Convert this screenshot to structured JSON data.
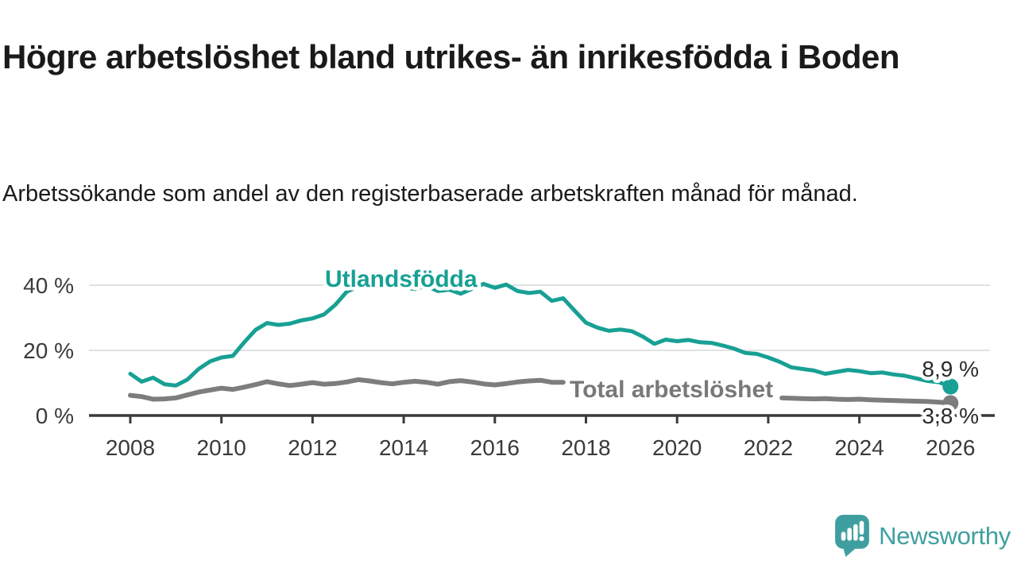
{
  "header": {
    "title": "Högre arbetslöshet bland utrikes- än inrikesfödda i Boden",
    "subtitle": "Arbetssökande som andel av den registerbaserade arbetskraften månad för månad."
  },
  "chart_data": {
    "type": "line",
    "unit": "%",
    "title": "Högre arbetslöshet bland utrikes- än inrikesfödda i Boden",
    "xlabel": "",
    "ylabel": "",
    "xlim": [
      2007.5,
      2026.4
    ],
    "ylim": [
      0,
      44
    ],
    "grid": "horizontal",
    "x_ticks": [
      2008,
      2010,
      2012,
      2014,
      2016,
      2018,
      2020,
      2022,
      2024,
      2026
    ],
    "y_ticks": [
      {
        "value": 0,
        "label": "0 %"
      },
      {
        "value": 20,
        "label": "20 %"
      },
      {
        "value": 40,
        "label": "40 %"
      }
    ],
    "series": [
      {
        "name": "Utlandsfödda",
        "label": "Utlandsfödda",
        "color": "#18a094",
        "end_label": "8,9 %",
        "end_value": 8.9,
        "points": [
          [
            2008.0,
            12.8
          ],
          [
            2008.25,
            10.4
          ],
          [
            2008.5,
            11.6
          ],
          [
            2008.75,
            9.6
          ],
          [
            2009.0,
            9.2
          ],
          [
            2009.25,
            11.0
          ],
          [
            2009.5,
            14.3
          ],
          [
            2009.75,
            16.6
          ],
          [
            2010.0,
            17.8
          ],
          [
            2010.25,
            18.3
          ],
          [
            2010.5,
            22.5
          ],
          [
            2010.75,
            26.3
          ],
          [
            2011.0,
            28.4
          ],
          [
            2011.25,
            27.8
          ],
          [
            2011.5,
            28.2
          ],
          [
            2011.75,
            29.2
          ],
          [
            2012.0,
            29.8
          ],
          [
            2012.25,
            31.0
          ],
          [
            2012.5,
            34.0
          ],
          [
            2012.75,
            38.0
          ],
          [
            2013.0,
            39.6
          ],
          [
            2013.25,
            40.4
          ],
          [
            2013.5,
            39.3
          ],
          [
            2013.75,
            40.3
          ],
          [
            2014.0,
            39.5
          ],
          [
            2014.25,
            38.8
          ],
          [
            2014.5,
            39.8
          ],
          [
            2014.75,
            38.2
          ],
          [
            2015.0,
            38.6
          ],
          [
            2015.25,
            37.4
          ],
          [
            2015.5,
            38.9
          ],
          [
            2015.75,
            40.4
          ],
          [
            2016.0,
            39.2
          ],
          [
            2016.25,
            40.2
          ],
          [
            2016.5,
            38.2
          ],
          [
            2016.75,
            37.6
          ],
          [
            2017.0,
            38.0
          ],
          [
            2017.25,
            35.2
          ],
          [
            2017.5,
            36.0
          ],
          [
            2017.75,
            32.2
          ],
          [
            2018.0,
            28.5
          ],
          [
            2018.25,
            27.0
          ],
          [
            2018.5,
            26.0
          ],
          [
            2018.75,
            26.4
          ],
          [
            2019.0,
            25.9
          ],
          [
            2019.25,
            24.2
          ],
          [
            2019.5,
            22.0
          ],
          [
            2019.75,
            23.3
          ],
          [
            2020.0,
            22.8
          ],
          [
            2020.25,
            23.2
          ],
          [
            2020.5,
            22.5
          ],
          [
            2020.75,
            22.3
          ],
          [
            2021.0,
            21.5
          ],
          [
            2021.25,
            20.5
          ],
          [
            2021.5,
            19.2
          ],
          [
            2021.75,
            18.9
          ],
          [
            2022.0,
            17.8
          ],
          [
            2022.25,
            16.5
          ],
          [
            2022.5,
            14.8
          ],
          [
            2022.75,
            14.3
          ],
          [
            2023.0,
            13.8
          ],
          [
            2023.25,
            12.8
          ],
          [
            2023.5,
            13.4
          ],
          [
            2023.75,
            14.0
          ],
          [
            2024.0,
            13.6
          ],
          [
            2024.25,
            13.0
          ],
          [
            2024.5,
            13.2
          ],
          [
            2024.75,
            12.6
          ],
          [
            2025.0,
            12.2
          ],
          [
            2025.25,
            11.4
          ],
          [
            2025.5,
            10.6
          ],
          [
            2025.75,
            10.2
          ],
          [
            2026.0,
            8.9
          ]
        ]
      },
      {
        "name": "Total arbetslöshet",
        "label": "Total arbetslöshet",
        "color": "#7d7d7d",
        "end_label": "3,8 %",
        "end_value": 3.8,
        "segments": [
          [
            [
              2008.0,
              6.2
            ],
            [
              2008.25,
              5.8
            ],
            [
              2008.5,
              5.0
            ],
            [
              2008.75,
              5.1
            ],
            [
              2009.0,
              5.4
            ],
            [
              2009.25,
              6.3
            ],
            [
              2009.5,
              7.2
            ],
            [
              2009.75,
              7.8
            ],
            [
              2010.0,
              8.4
            ],
            [
              2010.25,
              8.0
            ],
            [
              2010.5,
              8.7
            ],
            [
              2010.75,
              9.5
            ],
            [
              2011.0,
              10.4
            ],
            [
              2011.25,
              9.7
            ],
            [
              2011.5,
              9.2
            ],
            [
              2011.75,
              9.6
            ],
            [
              2012.0,
              10.1
            ],
            [
              2012.25,
              9.6
            ],
            [
              2012.5,
              9.8
            ],
            [
              2012.75,
              10.3
            ],
            [
              2013.0,
              11.0
            ],
            [
              2013.25,
              10.6
            ],
            [
              2013.5,
              10.1
            ],
            [
              2013.75,
              9.7
            ],
            [
              2014.0,
              10.2
            ],
            [
              2014.25,
              10.5
            ],
            [
              2014.5,
              10.2
            ],
            [
              2014.75,
              9.6
            ],
            [
              2015.0,
              10.4
            ],
            [
              2015.25,
              10.7
            ],
            [
              2015.5,
              10.3
            ],
            [
              2015.75,
              9.7
            ],
            [
              2016.0,
              9.4
            ],
            [
              2016.25,
              9.8
            ],
            [
              2016.5,
              10.3
            ],
            [
              2016.75,
              10.6
            ],
            [
              2017.0,
              10.8
            ],
            [
              2017.25,
              10.2
            ],
            [
              2017.5,
              10.2
            ]
          ],
          [
            [
              2022.3,
              5.4
            ],
            [
              2022.5,
              5.3
            ],
            [
              2022.75,
              5.2
            ],
            [
              2023.0,
              5.1
            ],
            [
              2023.25,
              5.2
            ],
            [
              2023.5,
              5.0
            ],
            [
              2023.75,
              4.9
            ],
            [
              2024.0,
              5.0
            ],
            [
              2024.25,
              4.8
            ],
            [
              2024.5,
              4.7
            ],
            [
              2024.75,
              4.6
            ],
            [
              2025.0,
              4.5
            ],
            [
              2025.25,
              4.4
            ],
            [
              2025.5,
              4.3
            ],
            [
              2025.75,
              4.1
            ],
            [
              2026.0,
              3.8
            ]
          ]
        ]
      }
    ]
  },
  "footer": {
    "brand": "Newsworthy",
    "logo_color": "#3f9fa0",
    "logo_icon": "speech-bubble-bar-chart"
  }
}
